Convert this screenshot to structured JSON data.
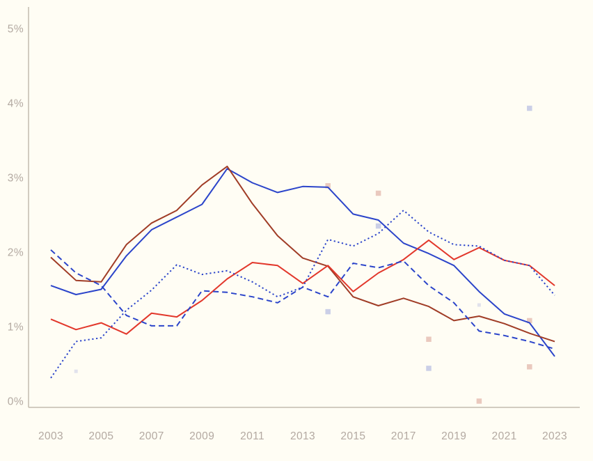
{
  "page": {
    "background_color": "#fffdf4"
  },
  "chart_data": {
    "type": "line",
    "title": "",
    "xlabel": "",
    "ylabel": "",
    "x": [
      2003,
      2004,
      2005,
      2006,
      2007,
      2008,
      2009,
      2010,
      2011,
      2012,
      2013,
      2014,
      2015,
      2016,
      2017,
      2018,
      2019,
      2020,
      2021,
      2022,
      2023
    ],
    "x_tick_labels": [
      "2003",
      "2005",
      "2007",
      "2009",
      "2011",
      "2013",
      "2015",
      "2017",
      "2019",
      "2021",
      "2023"
    ],
    "y_tick_labels": [
      "0%",
      "1%",
      "2%",
      "3%",
      "4%",
      "5%"
    ],
    "y_tick_values": [
      0,
      1,
      2,
      3,
      4,
      5
    ],
    "ylim": [
      0,
      5
    ],
    "xlim": [
      2003,
      2023
    ],
    "grid": false,
    "legend_position": "none",
    "axis_color": "#c3bcae",
    "tick_label_color": "#b3a9a1",
    "series": [
      {
        "name": "solid-blue",
        "color": "#2b44ca",
        "style": "solid",
        "values": [
          1.55,
          1.43,
          1.5,
          1.95,
          2.3,
          2.47,
          2.64,
          3.12,
          2.93,
          2.8,
          2.88,
          2.87,
          2.51,
          2.43,
          2.12,
          1.98,
          1.82,
          1.47,
          1.17,
          1.05,
          0.6
        ]
      },
      {
        "name": "solid-dark-red",
        "color": "#a03c26",
        "style": "solid",
        "values": [
          1.93,
          1.62,
          1.6,
          2.1,
          2.39,
          2.56,
          2.9,
          3.15,
          2.65,
          2.22,
          1.92,
          1.81,
          1.4,
          1.28,
          1.38,
          1.27,
          1.08,
          1.14,
          1.04,
          0.91,
          0.8
        ]
      },
      {
        "name": "solid-red",
        "color": "#e2372b",
        "style": "solid",
        "values": [
          1.1,
          0.96,
          1.05,
          0.9,
          1.18,
          1.13,
          1.35,
          1.64,
          1.86,
          1.82,
          1.58,
          1.82,
          1.47,
          1.72,
          1.9,
          2.16,
          1.9,
          2.06,
          1.89,
          1.82,
          1.55
        ]
      },
      {
        "name": "dashed-blue",
        "color": "#2b44ca",
        "style": "dashed",
        "values": [
          2.03,
          1.72,
          1.55,
          1.15,
          1.01,
          1.01,
          1.48,
          1.46,
          1.4,
          1.32,
          1.53,
          1.4,
          1.85,
          1.79,
          1.88,
          1.55,
          1.32,
          0.94,
          0.88,
          0.8,
          0.7
        ]
      },
      {
        "name": "dotted-blue",
        "color": "#2b44ca",
        "style": "dotted",
        "values": [
          0.31,
          0.8,
          0.85,
          1.22,
          1.49,
          1.83,
          1.7,
          1.75,
          1.6,
          1.4,
          1.53,
          2.17,
          2.08,
          2.25,
          2.56,
          2.27,
          2.1,
          2.08,
          1.89,
          1.82,
          1.42
        ]
      }
    ],
    "scatter_points": [
      {
        "x": 2004,
        "y": 0.4,
        "color": "lavender",
        "faint": true
      },
      {
        "x": 2014,
        "y": 2.89,
        "color": "pink"
      },
      {
        "x": 2014,
        "y": 1.2,
        "color": "lavender"
      },
      {
        "x": 2016,
        "y": 2.79,
        "color": "pink"
      },
      {
        "x": 2016,
        "y": 2.35,
        "color": "lavender"
      },
      {
        "x": 2018,
        "y": 0.83,
        "color": "pink"
      },
      {
        "x": 2018,
        "y": 0.44,
        "color": "lavender"
      },
      {
        "x": 2020,
        "y": 1.29,
        "color": "lavender",
        "faint": true
      },
      {
        "x": 2020,
        "y": 0.0,
        "color": "pink"
      },
      {
        "x": 2022,
        "y": 3.93,
        "color": "lavender"
      },
      {
        "x": 2022,
        "y": 1.08,
        "color": "pink"
      },
      {
        "x": 2022,
        "y": 0.46,
        "color": "pink"
      }
    ],
    "marker_colors": {
      "pink": "#e9c6bb",
      "lavender": "#c8cce6"
    }
  }
}
